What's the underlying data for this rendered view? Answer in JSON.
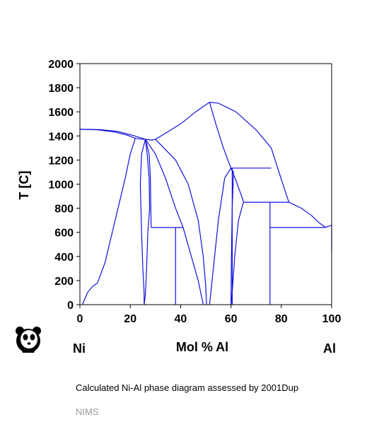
{
  "caption": "Calculated Ni-Al phase diagram assessed by 2001Dup",
  "source": "NIMS",
  "logo_icon": "panda-icon",
  "chart_data": {
    "type": "line",
    "title": "",
    "xlabel": "Mol % Al",
    "ylabel": "T [C]",
    "xlim": [
      0,
      100
    ],
    "ylim": [
      0,
      2000
    ],
    "x_ticks": [
      "0",
      "20",
      "40",
      "60",
      "80",
      "100"
    ],
    "y_ticks": [
      "0",
      "200",
      "400",
      "600",
      "800",
      "1000",
      "1200",
      "1400",
      "1600",
      "1800",
      "2000"
    ],
    "left_end_label": "Ni",
    "right_end_label": "Al",
    "line_color": "#1010e0",
    "grid": false,
    "series": [
      {
        "points": [
          [
            0,
            1455
          ],
          [
            8,
            1453
          ],
          [
            15,
            1437
          ],
          [
            21,
            1405
          ],
          [
            26,
            1372
          ]
        ]
      },
      {
        "points": [
          [
            0,
            1455
          ],
          [
            7,
            1451
          ],
          [
            14,
            1432
          ],
          [
            19,
            1405
          ],
          [
            22,
            1380
          ]
        ]
      },
      {
        "points": [
          [
            1,
            0
          ],
          [
            2,
            50
          ],
          [
            3,
            100
          ],
          [
            5,
            150
          ],
          [
            7,
            180
          ],
          [
            10,
            350
          ],
          [
            14,
            700
          ],
          [
            18,
            1050
          ],
          [
            20,
            1250
          ],
          [
            22,
            1380
          ]
        ]
      },
      {
        "points": [
          [
            22,
            1380
          ],
          [
            24,
            1374
          ],
          [
            26,
            1372
          ]
        ]
      },
      {
        "points": [
          [
            26,
            1372
          ],
          [
            24.5,
            1250
          ],
          [
            24,
            1000
          ],
          [
            24.5,
            600
          ],
          [
            25,
            300
          ],
          [
            25.5,
            100
          ],
          [
            25.5,
            0
          ]
        ]
      },
      {
        "points": [
          [
            26,
            1372
          ],
          [
            26.7,
            1250
          ],
          [
            27.5,
            1050
          ],
          [
            27.7,
            800
          ],
          [
            27,
            600
          ],
          [
            26.5,
            300
          ],
          [
            26,
            80
          ],
          [
            25.5,
            0
          ]
        ]
      },
      {
        "points": [
          [
            26,
            1372
          ],
          [
            27.5,
            1250
          ],
          [
            28,
            1050
          ],
          [
            28.3,
            640
          ]
        ]
      },
      {
        "points": [
          [
            26,
            1372
          ],
          [
            28.5,
            1366
          ],
          [
            30,
            1372
          ]
        ]
      },
      {
        "points": [
          [
            26,
            1372
          ],
          [
            30,
            1250
          ],
          [
            34,
            1050
          ],
          [
            38,
            800
          ],
          [
            41,
            640
          ],
          [
            44,
            420
          ],
          [
            47,
            200
          ],
          [
            49,
            0
          ]
        ]
      },
      {
        "points": [
          [
            30,
            1372
          ],
          [
            40,
            1500
          ],
          [
            46,
            1600
          ],
          [
            51.5,
            1680
          ]
        ]
      },
      {
        "points": [
          [
            30,
            1372
          ],
          [
            38,
            1200
          ],
          [
            43,
            1000
          ],
          [
            47,
            700
          ],
          [
            49,
            400
          ],
          [
            50,
            150
          ],
          [
            50.3,
            0
          ]
        ]
      },
      {
        "points": [
          [
            51.5,
            1680
          ],
          [
            55,
            1672
          ],
          [
            62,
            1600
          ],
          [
            70,
            1450
          ],
          [
            76,
            1300
          ],
          [
            80,
            1040
          ],
          [
            83,
            850
          ]
        ]
      },
      {
        "points": [
          [
            51.5,
            1680
          ],
          [
            54,
            1500
          ],
          [
            57,
            1300
          ],
          [
            60,
            1133
          ]
        ]
      },
      {
        "points": [
          [
            60,
            1133
          ],
          [
            57.5,
            1050
          ],
          [
            55,
            700
          ],
          [
            53,
            300
          ],
          [
            51.5,
            0
          ]
        ]
      },
      {
        "points": [
          [
            60,
            1133
          ],
          [
            61,
            1100
          ],
          [
            60.5,
            800
          ],
          [
            60.2,
            400
          ],
          [
            60,
            0
          ]
        ]
      },
      {
        "points": [
          [
            60,
            1133
          ],
          [
            62,
            1030
          ],
          [
            65,
            855
          ]
        ]
      },
      {
        "points": [
          [
            65,
            855
          ],
          [
            63,
            700
          ],
          [
            61.5,
            400
          ],
          [
            60.5,
            100
          ],
          [
            60,
            0
          ]
        ]
      },
      {
        "points": [
          [
            83,
            850
          ],
          [
            88,
            800
          ],
          [
            92,
            740
          ],
          [
            95,
            680
          ],
          [
            97.5,
            642
          ]
        ]
      },
      {
        "points": [
          [
            97.5,
            642
          ],
          [
            98.5,
            648
          ],
          [
            100,
            660
          ]
        ]
      },
      {
        "points": [
          [
            28.3,
            640
          ],
          [
            41,
            640
          ]
        ]
      },
      {
        "points": [
          [
            38,
            640
          ],
          [
            38,
            0
          ]
        ]
      },
      {
        "points": [
          [
            60,
            1133
          ],
          [
            76,
            1133
          ]
        ]
      },
      {
        "points": [
          [
            65,
            850
          ],
          [
            83,
            850
          ]
        ]
      },
      {
        "points": [
          [
            75.5,
            850
          ],
          [
            75.5,
            0
          ]
        ]
      },
      {
        "points": [
          [
            75.5,
            640
          ],
          [
            97.5,
            640
          ]
        ]
      },
      {
        "points": [
          [
            60.5,
            1133
          ],
          [
            60.5,
            0
          ]
        ]
      },
      {
        "points": [
          [
            100,
            660
          ],
          [
            100,
            450
          ]
        ]
      }
    ]
  }
}
